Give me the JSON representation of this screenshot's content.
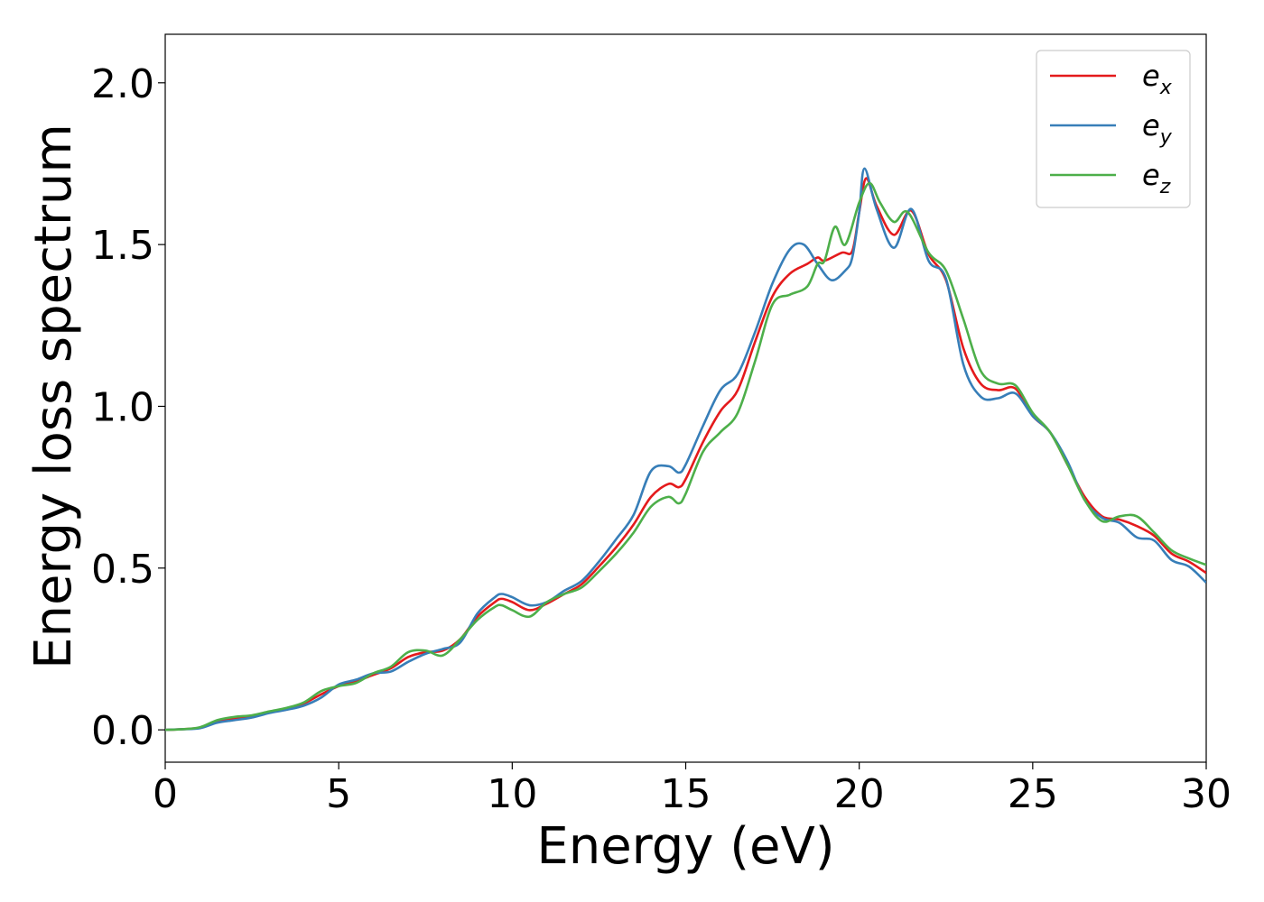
{
  "chart_data": {
    "type": "line",
    "title": "",
    "xlabel": "Energy (eV)",
    "ylabel": "Energy loss spectrum",
    "xlim": [
      0,
      30
    ],
    "ylim": [
      -0.1,
      2.15
    ],
    "xticks": [
      0,
      5,
      10,
      15,
      20,
      25,
      30
    ],
    "xtick_labels": [
      "0",
      "5",
      "10",
      "15",
      "20",
      "25",
      "30"
    ],
    "yticks": [
      0.0,
      0.5,
      1.0,
      1.5,
      2.0
    ],
    "ytick_labels": [
      "0.0",
      "0.5",
      "1.0",
      "1.5",
      "2.0"
    ],
    "grid": false,
    "legend_position": "top-right",
    "series": [
      {
        "name": "e",
        "subscript": "x",
        "color": "#e41a1c",
        "points": [
          [
            0,
            0
          ],
          [
            0.5,
            0.002
          ],
          [
            1,
            0.007
          ],
          [
            1.5,
            0.025
          ],
          [
            2,
            0.035
          ],
          [
            2.5,
            0.042
          ],
          [
            3,
            0.055
          ],
          [
            3.5,
            0.065
          ],
          [
            4,
            0.082
          ],
          [
            4.5,
            0.11
          ],
          [
            5,
            0.135
          ],
          [
            5.5,
            0.15
          ],
          [
            6,
            0.17
          ],
          [
            6.5,
            0.19
          ],
          [
            7,
            0.225
          ],
          [
            7.5,
            0.24
          ],
          [
            8,
            0.245
          ],
          [
            8.5,
            0.28
          ],
          [
            9,
            0.35
          ],
          [
            9.5,
            0.395
          ],
          [
            9.7,
            0.405
          ],
          [
            10,
            0.395
          ],
          [
            10.5,
            0.37
          ],
          [
            11,
            0.39
          ],
          [
            11.5,
            0.42
          ],
          [
            12,
            0.45
          ],
          [
            12.5,
            0.505
          ],
          [
            13,
            0.565
          ],
          [
            13.5,
            0.635
          ],
          [
            14,
            0.72
          ],
          [
            14.5,
            0.76
          ],
          [
            14.8,
            0.75
          ],
          [
            15,
            0.775
          ],
          [
            15.5,
            0.89
          ],
          [
            16,
            0.985
          ],
          [
            16.5,
            1.05
          ],
          [
            17,
            1.2
          ],
          [
            17.5,
            1.34
          ],
          [
            18,
            1.41
          ],
          [
            18.5,
            1.44
          ],
          [
            18.8,
            1.46
          ],
          [
            19,
            1.45
          ],
          [
            19.5,
            1.475
          ],
          [
            19.8,
            1.48
          ],
          [
            20,
            1.6
          ],
          [
            20.2,
            1.705
          ],
          [
            20.5,
            1.62
          ],
          [
            21,
            1.53
          ],
          [
            21.5,
            1.605
          ],
          [
            22,
            1.47
          ],
          [
            22.5,
            1.39
          ],
          [
            23,
            1.18
          ],
          [
            23.5,
            1.07
          ],
          [
            24,
            1.05
          ],
          [
            24.5,
            1.055
          ],
          [
            25,
            0.97
          ],
          [
            25.5,
            0.92
          ],
          [
            26,
            0.82
          ],
          [
            26.5,
            0.72
          ],
          [
            27,
            0.66
          ],
          [
            27.5,
            0.65
          ],
          [
            28,
            0.63
          ],
          [
            28.5,
            0.6
          ],
          [
            29,
            0.545
          ],
          [
            29.5,
            0.52
          ],
          [
            30,
            0.485
          ]
        ]
      },
      {
        "name": "e",
        "subscript": "y",
        "color": "#377eb8",
        "points": [
          [
            0,
            0
          ],
          [
            0.5,
            0.002
          ],
          [
            1,
            0.005
          ],
          [
            1.5,
            0.022
          ],
          [
            2,
            0.03
          ],
          [
            2.5,
            0.038
          ],
          [
            3,
            0.052
          ],
          [
            3.5,
            0.062
          ],
          [
            4,
            0.075
          ],
          [
            4.5,
            0.1
          ],
          [
            5,
            0.14
          ],
          [
            5.5,
            0.155
          ],
          [
            6,
            0.175
          ],
          [
            6.5,
            0.18
          ],
          [
            7,
            0.21
          ],
          [
            7.5,
            0.235
          ],
          [
            8,
            0.25
          ],
          [
            8.5,
            0.27
          ],
          [
            9,
            0.36
          ],
          [
            9.5,
            0.41
          ],
          [
            9.7,
            0.42
          ],
          [
            10,
            0.41
          ],
          [
            10.5,
            0.385
          ],
          [
            11,
            0.395
          ],
          [
            11.5,
            0.43
          ],
          [
            12,
            0.46
          ],
          [
            12.5,
            0.52
          ],
          [
            13,
            0.59
          ],
          [
            13.5,
            0.665
          ],
          [
            14,
            0.8
          ],
          [
            14.5,
            0.815
          ],
          [
            14.8,
            0.795
          ],
          [
            15,
            0.82
          ],
          [
            15.5,
            0.94
          ],
          [
            16,
            1.05
          ],
          [
            16.5,
            1.1
          ],
          [
            17,
            1.23
          ],
          [
            17.5,
            1.38
          ],
          [
            18,
            1.485
          ],
          [
            18.4,
            1.5
          ],
          [
            18.8,
            1.44
          ],
          [
            19.2,
            1.39
          ],
          [
            19.6,
            1.42
          ],
          [
            19.8,
            1.46
          ],
          [
            20,
            1.6
          ],
          [
            20.15,
            1.735
          ],
          [
            20.5,
            1.61
          ],
          [
            21,
            1.49
          ],
          [
            21.5,
            1.61
          ],
          [
            22,
            1.45
          ],
          [
            22.5,
            1.395
          ],
          [
            23,
            1.13
          ],
          [
            23.5,
            1.03
          ],
          [
            24,
            1.025
          ],
          [
            24.5,
            1.04
          ],
          [
            25,
            0.97
          ],
          [
            25.5,
            0.92
          ],
          [
            26,
            0.83
          ],
          [
            26.5,
            0.71
          ],
          [
            27,
            0.655
          ],
          [
            27.5,
            0.64
          ],
          [
            28,
            0.595
          ],
          [
            28.5,
            0.585
          ],
          [
            29,
            0.525
          ],
          [
            29.5,
            0.505
          ],
          [
            30,
            0.455
          ]
        ]
      },
      {
        "name": "e",
        "subscript": "z",
        "color": "#4daf4a",
        "points": [
          [
            0,
            0
          ],
          [
            0.5,
            0.002
          ],
          [
            1,
            0.008
          ],
          [
            1.5,
            0.03
          ],
          [
            2,
            0.04
          ],
          [
            2.5,
            0.045
          ],
          [
            3,
            0.057
          ],
          [
            3.5,
            0.068
          ],
          [
            4,
            0.085
          ],
          [
            4.5,
            0.12
          ],
          [
            5,
            0.135
          ],
          [
            5.5,
            0.145
          ],
          [
            6,
            0.175
          ],
          [
            6.5,
            0.195
          ],
          [
            7,
            0.24
          ],
          [
            7.5,
            0.245
          ],
          [
            8,
            0.23
          ],
          [
            8.5,
            0.28
          ],
          [
            9,
            0.34
          ],
          [
            9.5,
            0.38
          ],
          [
            9.7,
            0.385
          ],
          [
            10,
            0.37
          ],
          [
            10.5,
            0.35
          ],
          [
            11,
            0.395
          ],
          [
            11.5,
            0.42
          ],
          [
            12,
            0.44
          ],
          [
            12.5,
            0.49
          ],
          [
            13,
            0.545
          ],
          [
            13.5,
            0.61
          ],
          [
            14,
            0.69
          ],
          [
            14.5,
            0.72
          ],
          [
            14.8,
            0.7
          ],
          [
            15,
            0.73
          ],
          [
            15.5,
            0.86
          ],
          [
            16,
            0.92
          ],
          [
            16.5,
            0.98
          ],
          [
            17,
            1.14
          ],
          [
            17.5,
            1.315
          ],
          [
            18,
            1.345
          ],
          [
            18.5,
            1.37
          ],
          [
            18.8,
            1.44
          ],
          [
            19,
            1.45
          ],
          [
            19.3,
            1.555
          ],
          [
            19.6,
            1.5
          ],
          [
            20,
            1.63
          ],
          [
            20.3,
            1.69
          ],
          [
            20.6,
            1.63
          ],
          [
            21,
            1.57
          ],
          [
            21.4,
            1.6
          ],
          [
            22,
            1.475
          ],
          [
            22.5,
            1.42
          ],
          [
            23,
            1.27
          ],
          [
            23.5,
            1.11
          ],
          [
            24,
            1.07
          ],
          [
            24.5,
            1.065
          ],
          [
            25,
            0.98
          ],
          [
            25.5,
            0.92
          ],
          [
            26,
            0.82
          ],
          [
            26.5,
            0.71
          ],
          [
            27,
            0.645
          ],
          [
            27.5,
            0.66
          ],
          [
            28,
            0.66
          ],
          [
            28.5,
            0.61
          ],
          [
            29,
            0.555
          ],
          [
            29.5,
            0.53
          ],
          [
            30,
            0.51
          ]
        ]
      }
    ]
  }
}
